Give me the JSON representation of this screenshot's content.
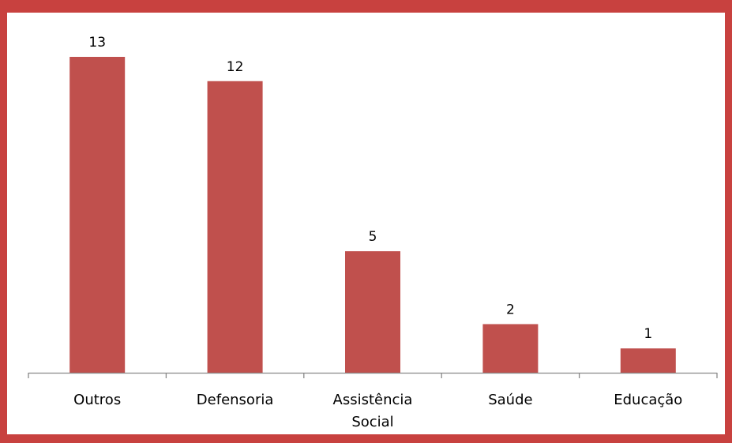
{
  "chart_data": {
    "type": "bar",
    "title": "",
    "xlabel": "",
    "ylabel": "",
    "categories": [
      [
        "Outros"
      ],
      [
        "Defensoria"
      ],
      [
        "Assistência",
        "Social"
      ],
      [
        "Saúde"
      ],
      [
        "Educação"
      ]
    ],
    "values": [
      13,
      12,
      5,
      2,
      1
    ],
    "ylim": [
      0,
      13
    ],
    "grid": false,
    "legend": "none",
    "colors": {
      "bar": "#c0504d",
      "frame": "#c8413f",
      "axis": "#898989",
      "background": "#ffffff"
    }
  }
}
